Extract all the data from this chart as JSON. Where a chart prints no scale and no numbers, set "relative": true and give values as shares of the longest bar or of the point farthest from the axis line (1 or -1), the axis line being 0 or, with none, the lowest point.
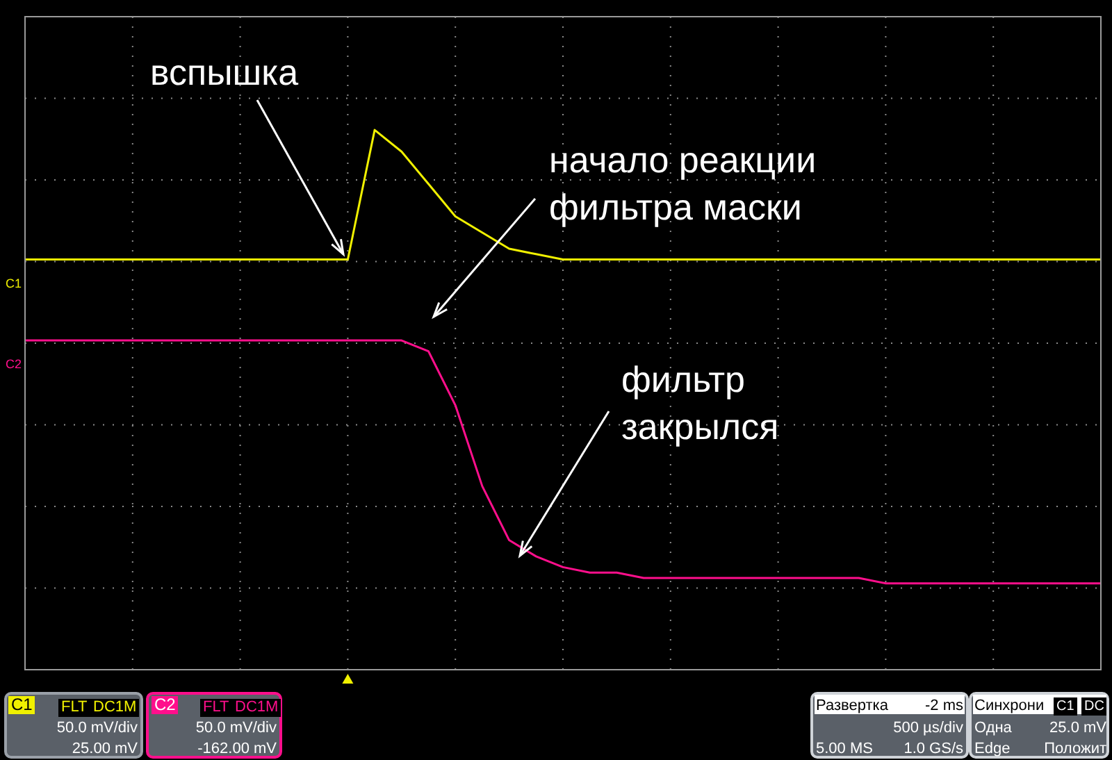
{
  "chart_data": {
    "type": "line",
    "relative": true,
    "grid": true,
    "categories": [
      null,
      null,
      null,
      null,
      null,
      null,
      null,
      null,
      null,
      null,
      null,
      null,
      null,
      null,
      null,
      null,
      null,
      null,
      null,
      null,
      null,
      null,
      null,
      null,
      null,
      null,
      null,
      null,
      null,
      null,
      null,
      null,
      null,
      null,
      null,
      null,
      null,
      null,
      null,
      null,
      null
    ],
    "series": [
      {
        "name": "C1",
        "color": "#f0f000",
        "values": [
          0.76,
          0.76,
          0.76,
          0.76,
          0.76,
          0.76,
          0.76,
          0.76,
          0.76,
          0.76,
          0.76,
          0.76,
          0.76,
          1,
          0.96,
          0.9,
          0.84,
          0.81,
          0.78,
          0.77,
          0.76,
          0.76,
          0.76,
          0.76,
          0.76,
          0.76,
          0.76,
          0.76,
          0.76,
          0.76,
          0.76,
          0.76,
          0.76,
          0.76,
          0.76,
          0.76,
          0.76,
          0.76,
          0.76,
          0.76,
          0.76
        ]
      },
      {
        "name": "C2",
        "color": "#ff0f8c",
        "values": [
          0.61,
          0.61,
          0.61,
          0.61,
          0.61,
          0.61,
          0.61,
          0.61,
          0.61,
          0.61,
          0.61,
          0.61,
          0.61,
          0.61,
          0.61,
          0.59,
          0.49,
          0.34,
          0.24,
          0.21,
          0.19,
          0.18,
          0.18,
          0.17,
          0.17,
          0.17,
          0.17,
          0.17,
          0.17,
          0.17,
          0.17,
          0.17,
          0.16,
          0.16,
          0.16,
          0.16,
          0.16,
          0.16,
          0.16,
          0.16,
          0.16
        ]
      }
    ],
    "annotations": [
      "вспышка",
      "начало реакции\nфильтра маски",
      "фильтр\nзакрылся",
      "C1",
      "FLT",
      "DC1M",
      "50.0 mV/div",
      "25.00 mV",
      "C2",
      "FLT",
      "DC1M",
      "50.0 mV/div",
      "-162.00 mV",
      "Развертка",
      "-2 ms",
      "500 µs/div",
      "5.00 MS",
      "1.0 GS/s",
      "Синхрони",
      "C1",
      "DC",
      "Одна",
      "25.0 mV",
      "Edge",
      "Положит"
    ]
  }
}
